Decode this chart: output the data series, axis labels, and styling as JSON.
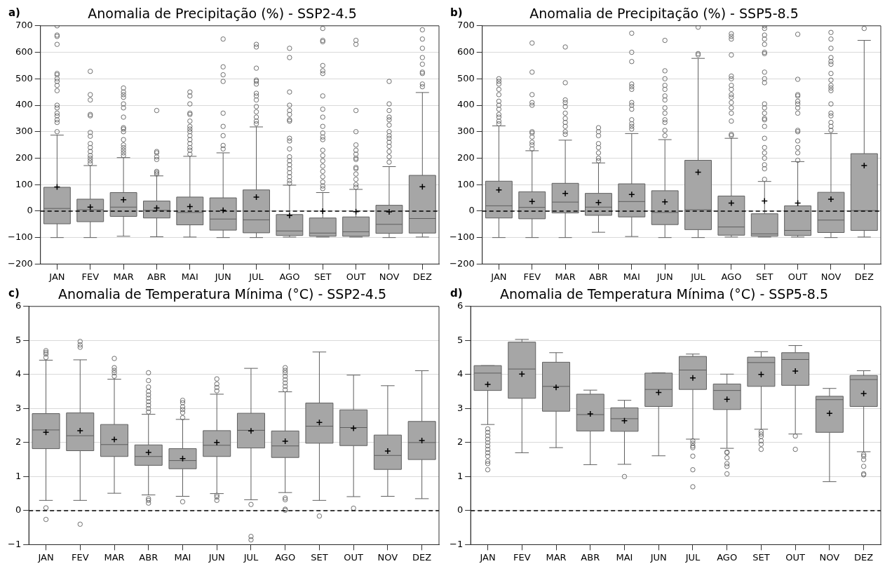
{
  "chart_data": [
    {
      "type": "box",
      "title": "Anomalia de Precipitação (%) - SSP2-4.5",
      "annotations": [
        "a)"
      ],
      "categories": [
        "JAN",
        "FEV",
        "MAR",
        "ABR",
        "MAI",
        "JUN",
        "JUL",
        "AGO",
        "SET",
        "OUT",
        "NOV",
        "DEZ"
      ],
      "color": "#a6a6a6",
      "ylim": [
        -200,
        700
      ],
      "yticks": [
        -200,
        -100,
        0,
        100,
        200,
        300,
        400,
        500,
        600,
        700
      ],
      "grid": "y",
      "marker": "circle",
      "ref_lines": [
        {
          "axis": "y",
          "value": 0,
          "color": "#000000",
          "line_style": "dashed"
        }
      ],
      "boxes": [
        {
          "low": -100,
          "q1": -48,
          "median": 10,
          "q3": 90,
          "high": 287,
          "mean": 91,
          "outliers": [
            300,
            335,
            345,
            360,
            370,
            390,
            400,
            455,
            475,
            490,
            500,
            515,
            520,
            630,
            660,
            665,
            700
          ]
        },
        {
          "low": -100,
          "q1": -40,
          "median": 5,
          "q3": 45,
          "high": 172,
          "mean": 15,
          "outliers": [
            180,
            190,
            200,
            210,
            225,
            240,
            255,
            283,
            297,
            360,
            365,
            420,
            440,
            528
          ]
        },
        {
          "low": -95,
          "q1": -20,
          "median": 15,
          "q3": 70,
          "high": 202,
          "mean": 43,
          "outliers": [
            210,
            220,
            230,
            240,
            250,
            270,
            300,
            310,
            315,
            355,
            390,
            405,
            430,
            440,
            450,
            465
          ]
        },
        {
          "low": -97,
          "q1": -26,
          "median": 3,
          "q3": 38,
          "high": 133,
          "mean": 12,
          "outliers": [
            140,
            145,
            150,
            195,
            205,
            220,
            225,
            380
          ]
        },
        {
          "low": -98,
          "q1": -52,
          "median": -5,
          "q3": 53,
          "high": 207,
          "mean": 17,
          "outliers": [
            215,
            230,
            240,
            255,
            270,
            285,
            300,
            310,
            320,
            340,
            365,
            370,
            405,
            435,
            450
          ]
        },
        {
          "low": -100,
          "q1": -72,
          "median": -30,
          "q3": 50,
          "high": 220,
          "mean": 3,
          "outliers": [
            235,
            248,
            285,
            320,
            370,
            490,
            515,
            545,
            650
          ]
        },
        {
          "low": -100,
          "q1": -82,
          "median": -33,
          "q3": 80,
          "high": 318,
          "mean": 53,
          "outliers": [
            330,
            340,
            355,
            375,
            395,
            420,
            435,
            445,
            480,
            490,
            495,
            540,
            620,
            630
          ]
        },
        {
          "low": -98,
          "q1": -92,
          "median": -75,
          "q3": -13,
          "high": 98,
          "mean": -17,
          "outliers": [
            105,
            115,
            130,
            145,
            160,
            175,
            190,
            205,
            235,
            265,
            275,
            340,
            345,
            365,
            380,
            400,
            450,
            580,
            615
          ]
        },
        {
          "low": -98,
          "q1": -95,
          "median": -83,
          "q3": -26,
          "high": 70,
          "mean": 0,
          "outliers": [
            85,
            95,
            110,
            130,
            150,
            170,
            190,
            210,
            230,
            270,
            280,
            295,
            320,
            355,
            385,
            435,
            520,
            530,
            550,
            640,
            645,
            690
          ]
        },
        {
          "low": -98,
          "q1": -95,
          "median": -78,
          "q3": -22,
          "high": 82,
          "mean": -2,
          "outliers": [
            90,
            100,
            120,
            140,
            160,
            165,
            195,
            200,
            215,
            230,
            250,
            300,
            380,
            630,
            645
          ]
        },
        {
          "low": -100,
          "q1": -84,
          "median": -50,
          "q3": 22,
          "high": 168,
          "mean": -3,
          "outliers": [
            185,
            205,
            225,
            245,
            260,
            275,
            285,
            300,
            325,
            345,
            355,
            380,
            405,
            490
          ]
        },
        {
          "low": -98,
          "q1": -83,
          "median": -28,
          "q3": 135,
          "high": 448,
          "mean": 92,
          "outliers": [
            470,
            480,
            520,
            525,
            555,
            580,
            615,
            650,
            685
          ]
        }
      ]
    },
    {
      "type": "box",
      "title": "Anomalia de Precipitação (%) - SSP5-8.5",
      "annotations": [
        "b)"
      ],
      "categories": [
        "JAN",
        "FEV",
        "MAR",
        "ABR",
        "MAI",
        "JUN",
        "JUL",
        "AGO",
        "SET",
        "OUT",
        "NOV",
        "DEZ"
      ],
      "color": "#a6a6a6",
      "ylim": [
        -200,
        700
      ],
      "yticks": [
        -200,
        -100,
        0,
        100,
        200,
        300,
        400,
        500,
        600,
        700
      ],
      "grid": "y",
      "marker": "circle",
      "ref_lines": [
        {
          "axis": "y",
          "value": 0,
          "color": "#000000",
          "line_style": "dashed"
        }
      ],
      "boxes": [
        {
          "low": -100,
          "q1": -26,
          "median": 20,
          "q3": 113,
          "high": 322,
          "mean": 80,
          "outliers": [
            330,
            340,
            355,
            365,
            385,
            400,
            415,
            440,
            460,
            480,
            490,
            500
          ]
        },
        {
          "low": -100,
          "q1": -29,
          "median": 14,
          "q3": 73,
          "high": 228,
          "mean": 36,
          "outliers": [
            235,
            250,
            260,
            280,
            295,
            300,
            400,
            410,
            440,
            525,
            635
          ]
        },
        {
          "low": -100,
          "q1": -7,
          "median": 34,
          "q3": 105,
          "high": 268,
          "mean": 67,
          "outliers": [
            290,
            300,
            320,
            335,
            350,
            370,
            395,
            410,
            420,
            485,
            620
          ]
        },
        {
          "low": -80,
          "q1": -16,
          "median": 15,
          "q3": 67,
          "high": 182,
          "mean": 32,
          "outliers": [
            190,
            200,
            220,
            240,
            255,
            285,
            300,
            315
          ]
        },
        {
          "low": -96,
          "q1": -22,
          "median": 36,
          "q3": 103,
          "high": 293,
          "mean": 63,
          "outliers": [
            310,
            320,
            330,
            345,
            385,
            400,
            410,
            460,
            470,
            480,
            565,
            600,
            672
          ]
        },
        {
          "low": -100,
          "q1": -51,
          "median": -5,
          "q3": 77,
          "high": 270,
          "mean": 35,
          "outliers": [
            285,
            305,
            335,
            345,
            370,
            390,
            420,
            435,
            460,
            475,
            500,
            530,
            645
          ]
        },
        {
          "low": -100,
          "q1": -70,
          "median": 5,
          "q3": 192,
          "high": 577,
          "mean": 147,
          "outliers": [
            590,
            595,
            695
          ]
        },
        {
          "low": -98,
          "q1": -91,
          "median": -60,
          "q3": 57,
          "high": 275,
          "mean": 30,
          "outliers": [
            285,
            290,
            340,
            370,
            390,
            410,
            430,
            440,
            460,
            475,
            500,
            510,
            590,
            650,
            660,
            670
          ]
        },
        {
          "low": -98,
          "q1": -95,
          "median": -86,
          "q3": -10,
          "high": 112,
          "mean": 38,
          "outliers": [
            120,
            160,
            175,
            200,
            220,
            240,
            275,
            320,
            345,
            350,
            370,
            390,
            405,
            485,
            500,
            525,
            595,
            600,
            630,
            650,
            665,
            690,
            700
          ]
        },
        {
          "low": -98,
          "q1": -92,
          "median": -73,
          "q3": 20,
          "high": 187,
          "mean": 30,
          "outliers": [
            192,
            220,
            240,
            265,
            300,
            305,
            370,
            390,
            405,
            415,
            435,
            440,
            498,
            668
          ]
        },
        {
          "low": -100,
          "q1": -81,
          "median": -34,
          "q3": 71,
          "high": 293,
          "mean": 45,
          "outliers": [
            305,
            320,
            335,
            360,
            370,
            405,
            455,
            465,
            475,
            495,
            520,
            555,
            565,
            580,
            615,
            650,
            675
          ]
        },
        {
          "low": -98,
          "q1": -73,
          "median": 2,
          "q3": 217,
          "high": 645,
          "mean": 172,
          "outliers": [
            690
          ]
        }
      ]
    },
    {
      "type": "box",
      "title": "Anomalia de Temperatura Mínima (°C) - SSP2-4.5",
      "annotations": [
        "c)"
      ],
      "categories": [
        "JAN",
        "FEV",
        "MAR",
        "ABR",
        "MAI",
        "JUN",
        "JUL",
        "AGO",
        "SET",
        "OUT",
        "NOV",
        "DEZ"
      ],
      "color": "#a6a6a6",
      "ylim": [
        -1,
        6
      ],
      "yticks": [
        -1,
        0,
        1,
        2,
        3,
        4,
        5,
        6
      ],
      "grid": "y",
      "marker": "circle",
      "ref_lines": [
        {
          "axis": "y",
          "value": 0,
          "color": "#000000",
          "line_style": "dashed"
        }
      ],
      "boxes": [
        {
          "low": 0.3,
          "q1": 1.82,
          "median": 2.37,
          "q3": 2.85,
          "high": 4.42,
          "mean": 2.3,
          "outliers": [
            4.5,
            4.6,
            4.65,
            4.7,
            0.08,
            -0.26
          ]
        },
        {
          "low": 0.3,
          "q1": 1.76,
          "median": 2.2,
          "q3": 2.87,
          "high": 4.43,
          "mean": 2.35,
          "outliers": [
            4.8,
            4.87,
            4.97,
            -0.4
          ]
        },
        {
          "low": 0.51,
          "q1": 1.59,
          "median": 1.94,
          "q3": 2.53,
          "high": 3.86,
          "mean": 2.09,
          "outliers": [
            3.95,
            4.05,
            4.12,
            4.2,
            4.47
          ]
        },
        {
          "low": 0.46,
          "q1": 1.33,
          "median": 1.59,
          "q3": 1.93,
          "high": 2.83,
          "mean": 1.71,
          "outliers": [
            2.9,
            3.0,
            3.1,
            3.2,
            3.3,
            3.4,
            3.5,
            3.63,
            3.82,
            4.05,
            0.35,
            0.3,
            0.22
          ]
        },
        {
          "low": 0.42,
          "q1": 1.23,
          "median": 1.47,
          "q3": 1.82,
          "high": 2.68,
          "mean": 1.53,
          "outliers": [
            2.73,
            2.88,
            2.97,
            3.05,
            3.17,
            3.24,
            0.26
          ]
        },
        {
          "low": 0.5,
          "q1": 1.59,
          "median": 1.92,
          "q3": 2.35,
          "high": 3.42,
          "mean": 2.0,
          "outliers": [
            3.52,
            3.62,
            3.72,
            3.87,
            0.45,
            0.4,
            0.3
          ]
        },
        {
          "low": 0.32,
          "q1": 1.84,
          "median": 2.36,
          "q3": 2.86,
          "high": 4.18,
          "mean": 2.34,
          "outliers": [
            0.18,
            -0.76,
            -0.86
          ]
        },
        {
          "low": 0.53,
          "q1": 1.56,
          "median": 1.9,
          "q3": 2.34,
          "high": 3.49,
          "mean": 2.04,
          "outliers": [
            3.55,
            3.65,
            3.75,
            3.85,
            3.95,
            4.05,
            4.12,
            4.2,
            0.37,
            0.32,
            0.04,
            0.01
          ]
        },
        {
          "low": 0.3,
          "q1": 1.98,
          "median": 2.48,
          "q3": 3.16,
          "high": 4.66,
          "mean": 2.59,
          "outliers": [
            -0.16
          ]
        },
        {
          "low": 0.41,
          "q1": 1.91,
          "median": 2.44,
          "q3": 2.96,
          "high": 3.98,
          "mean": 2.42,
          "outliers": [
            0.07
          ]
        },
        {
          "low": 0.42,
          "q1": 1.21,
          "median": 1.62,
          "q3": 2.22,
          "high": 3.67,
          "mean": 1.75
        },
        {
          "low": 0.35,
          "q1": 1.5,
          "median": 2.0,
          "q3": 2.62,
          "high": 4.11,
          "mean": 2.06
        }
      ]
    },
    {
      "type": "box",
      "title": "Anomalia de Temperatura Mínima (°C) - SSP5-8.5",
      "annotations": [
        "d)"
      ],
      "categories": [
        "JAN",
        "FEV",
        "MAR",
        "ABR",
        "MAI",
        "JUN",
        "JUL",
        "AGO",
        "SET",
        "OUT",
        "NOV",
        "DEZ"
      ],
      "color": "#a6a6a6",
      "ylim": [
        -1,
        6
      ],
      "yticks": [
        -1,
        0,
        1,
        2,
        3,
        4,
        5,
        6
      ],
      "grid": "y",
      "marker": "circle",
      "ref_lines": [
        {
          "axis": "y",
          "value": 0,
          "color": "#000000",
          "line_style": "dashed"
        }
      ],
      "boxes": [
        {
          "low": 2.53,
          "q1": 3.53,
          "median": 4.04,
          "q3": 4.26,
          "high": 4.26,
          "mean": 3.71,
          "outliers": [
            2.4,
            2.3,
            2.2,
            2.1,
            2.0,
            1.9,
            1.8,
            1.7,
            1.6,
            1.45,
            1.38,
            1.2
          ]
        },
        {
          "low": 1.7,
          "q1": 3.3,
          "median": 4.16,
          "q3": 4.95,
          "high": 5.03,
          "mean": 4.01
        },
        {
          "low": 1.85,
          "q1": 2.92,
          "median": 3.65,
          "q3": 4.36,
          "high": 4.64,
          "mean": 3.62
        },
        {
          "low": 1.35,
          "q1": 2.34,
          "median": 2.82,
          "q3": 3.42,
          "high": 3.54,
          "mean": 2.84
        },
        {
          "low": 1.36,
          "q1": 2.33,
          "median": 2.7,
          "q3": 3.02,
          "high": 3.24,
          "mean": 2.64,
          "outliers": [
            1.0
          ]
        },
        {
          "low": 1.61,
          "q1": 3.06,
          "median": 3.56,
          "q3": 4.04,
          "high": 4.05,
          "mean": 3.47
        },
        {
          "low": 2.1,
          "q1": 3.56,
          "median": 4.13,
          "q3": 4.53,
          "high": 4.6,
          "mean": 3.9,
          "outliers": [
            2.05,
            1.98,
            1.9,
            1.85,
            1.6,
            1.2,
            0.7
          ]
        },
        {
          "low": 1.83,
          "q1": 2.97,
          "median": 3.53,
          "q3": 3.72,
          "high": 4.01,
          "mean": 3.27,
          "outliers": [
            1.72,
            1.7,
            1.55,
            1.38,
            1.3,
            1.08
          ]
        },
        {
          "low": 2.39,
          "q1": 3.65,
          "median": 4.35,
          "q3": 4.51,
          "high": 4.67,
          "mean": 4.0,
          "outliers": [
            2.32,
            2.25,
            2.18,
            2.05,
            1.95,
            1.8
          ]
        },
        {
          "low": 2.25,
          "q1": 3.68,
          "median": 4.44,
          "q3": 4.64,
          "high": 4.85,
          "mean": 4.1,
          "outliers": [
            2.19,
            1.8
          ]
        },
        {
          "low": 0.85,
          "q1": 2.3,
          "median": 3.26,
          "q3": 3.36,
          "high": 3.59,
          "mean": 2.86
        },
        {
          "low": 1.73,
          "q1": 3.06,
          "median": 3.85,
          "q3": 3.97,
          "high": 4.11,
          "mean": 3.44,
          "outliers": [
            1.65,
            1.6,
            1.5,
            1.3,
            1.08,
            1.05
          ]
        }
      ]
    }
  ]
}
